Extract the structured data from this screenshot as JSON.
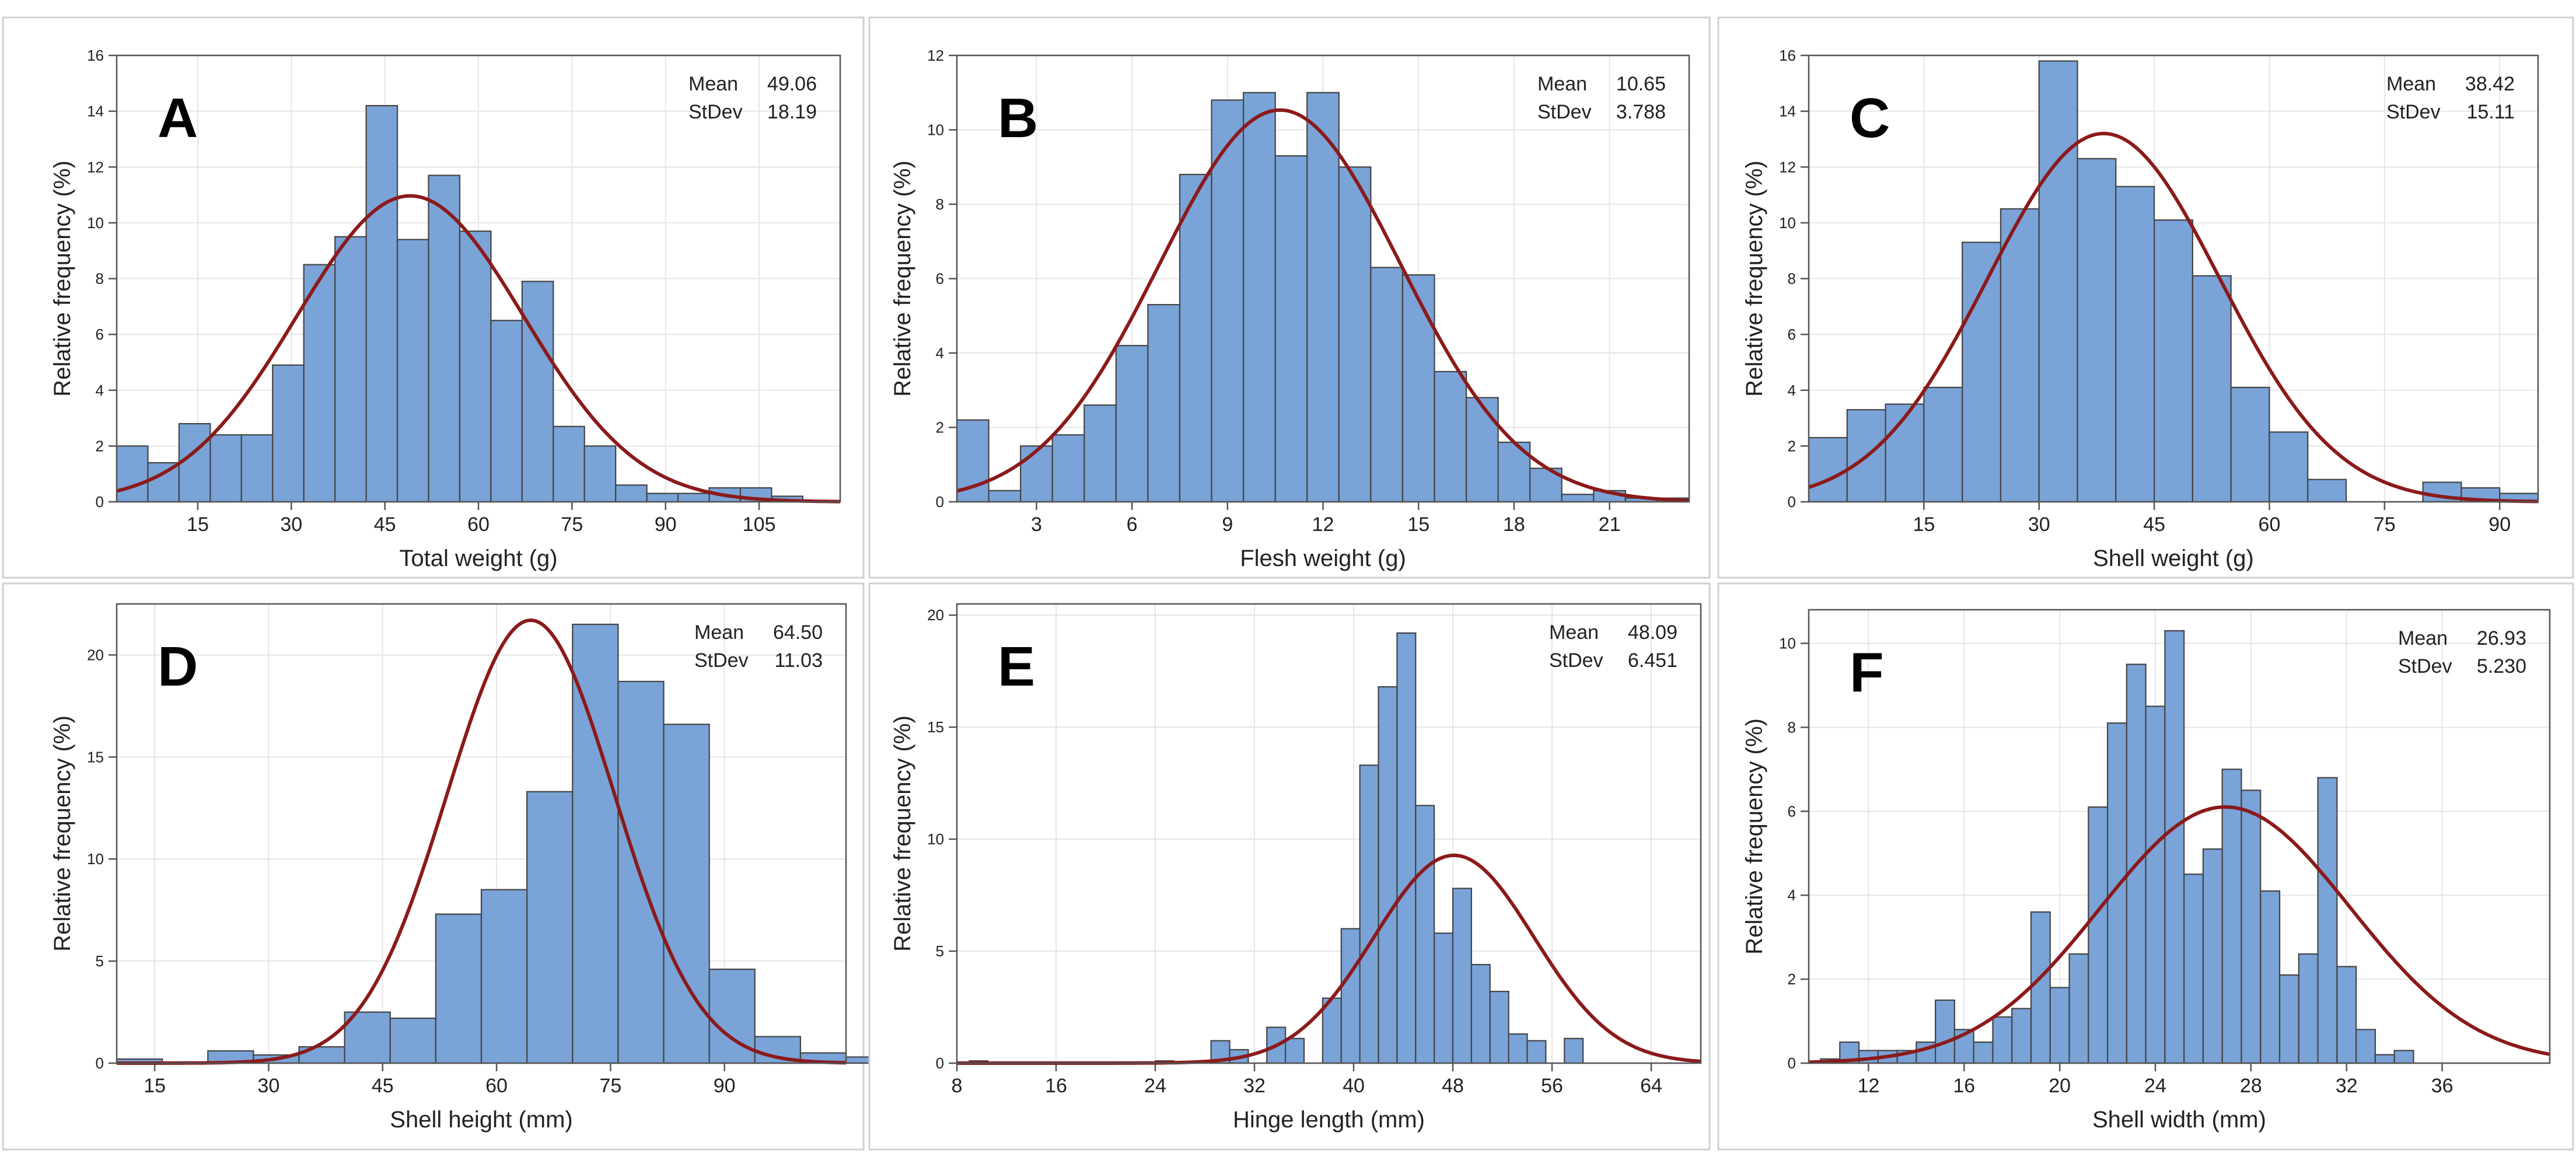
{
  "colors": {
    "bar_fill": "#7AA3D8",
    "bar_edge": "#444444",
    "curve": "#8B1A1A",
    "grid": "#E6E6E6",
    "axis": "#555555",
    "panel_border": "#D0D0D0",
    "text": "#222222"
  },
  "stats_labels": {
    "mean": "Mean",
    "stdev": "StDev"
  },
  "chart_data": [
    {
      "panel": "A",
      "type": "bar",
      "xlabel": "Total weight (g)",
      "ylabel": "Relative frequency (%)",
      "mean": "49.06",
      "stdev": "18.19",
      "xlim": [
        2,
        118
      ],
      "ylim": [
        0,
        16
      ],
      "xticks": [
        "15",
        "30",
        "45",
        "60",
        "75",
        "90",
        "105"
      ],
      "yticks": [
        "0",
        "2",
        "4",
        "6",
        "8",
        "10",
        "12",
        "14",
        "16"
      ],
      "bin_start": 2,
      "bin_width": 5,
      "values": [
        2.0,
        1.4,
        2.8,
        2.4,
        2.4,
        4.9,
        8.5,
        9.5,
        14.2,
        9.4,
        11.7,
        9.7,
        6.5,
        7.9,
        2.7,
        2.0,
        0.6,
        0.3,
        0.3,
        0.5,
        0.5,
        0.2
      ]
    },
    {
      "panel": "B",
      "type": "bar",
      "xlabel": "Flesh weight (g)",
      "ylabel": "Relative frequency (%)",
      "mean": "10.65",
      "stdev": "3.788",
      "xlim": [
        0.5,
        23.5
      ],
      "ylim": [
        0,
        12
      ],
      "xticks": [
        "3",
        "6",
        "9",
        "12",
        "15",
        "18",
        "21"
      ],
      "yticks": [
        "0",
        "2",
        "4",
        "6",
        "8",
        "10",
        "12"
      ],
      "bin_start": 0.5,
      "bin_width": 1,
      "values": [
        2.2,
        0.3,
        1.5,
        1.8,
        2.6,
        4.2,
        5.3,
        8.8,
        10.8,
        11.0,
        9.3,
        11.0,
        9.0,
        6.3,
        6.1,
        3.5,
        2.8,
        1.6,
        0.9,
        0.2,
        0.3,
        0.1,
        0.1
      ]
    },
    {
      "panel": "C",
      "type": "bar",
      "xlabel": "Shell weight (g)",
      "ylabel": "Relative frequency (%)",
      "mean": "38.42",
      "stdev": "15.11",
      "xlim": [
        0,
        95
      ],
      "ylim": [
        0,
        16
      ],
      "xticks": [
        "15",
        "30",
        "45",
        "60",
        "75",
        "90"
      ],
      "yticks": [
        "0",
        "2",
        "4",
        "6",
        "8",
        "10",
        "12",
        "14",
        "16"
      ],
      "bin_start": 0,
      "bin_width": 5,
      "values": [
        2.3,
        3.3,
        3.5,
        4.1,
        9.3,
        10.5,
        15.8,
        12.3,
        11.3,
        10.1,
        8.1,
        4.1,
        2.5,
        0.8,
        0.0,
        0.0,
        0.7,
        0.5,
        0.3
      ]
    },
    {
      "panel": "D",
      "type": "bar",
      "xlabel": "Shell height (mm)",
      "ylabel": "Relative frequency (%)",
      "mean": "64.50",
      "stdev": "11.03",
      "xlim": [
        10,
        106
      ],
      "ylim": [
        0,
        22.5
      ],
      "xticks": [
        "15",
        "30",
        "45",
        "60",
        "75",
        "90"
      ],
      "yticks": [
        "0",
        "5",
        "10",
        "15",
        "20"
      ],
      "bin_start": 10,
      "bin_width": 6,
      "values": [
        0.2,
        0.0,
        0.6,
        0.4,
        0.8,
        2.5,
        2.2,
        7.3,
        8.5,
        13.3,
        21.5,
        18.7,
        16.6,
        4.6,
        1.3,
        0.5,
        0.3
      ]
    },
    {
      "panel": "E",
      "type": "bar",
      "xlabel": "Hinge length (mm)",
      "ylabel": "Relative frequency (%)",
      "mean": "48.09",
      "stdev": "6.451",
      "xlim": [
        8,
        68
      ],
      "ylim": [
        0,
        20.5
      ],
      "xticks": [
        "8",
        "16",
        "24",
        "32",
        "40",
        "48",
        "56",
        "64"
      ],
      "yticks": [
        "0",
        "5",
        "10",
        "15",
        "20"
      ],
      "bin_start": 9,
      "bin_width": 1.5,
      "values": [
        0.1,
        0,
        0,
        0,
        0,
        0,
        0,
        0,
        0,
        0,
        0.1,
        0,
        0,
        1.0,
        0.6,
        0,
        1.6,
        1.1,
        0,
        2.9,
        6.0,
        13.3,
        16.8,
        19.2,
        11.5,
        5.8,
        7.8,
        4.4,
        3.2,
        1.3,
        1.0,
        0,
        1.1
      ]
    },
    {
      "panel": "F",
      "type": "bar",
      "xlabel": "Shell width (mm)",
      "ylabel": "Relative frequency (%)",
      "mean": "26.93",
      "stdev": "5.230",
      "xlim": [
        9.5,
        40.5
      ],
      "ylim": [
        0,
        10.8
      ],
      "xticks": [
        "12",
        "16",
        "20",
        "24",
        "28",
        "32",
        "36"
      ],
      "yticks": [
        "0",
        "2",
        "4",
        "6",
        "8",
        "10"
      ],
      "bin_start": 10,
      "bin_width": 0.8,
      "values": [
        0.1,
        0.5,
        0.3,
        0.3,
        0.3,
        0.5,
        1.5,
        0.8,
        0.5,
        1.1,
        1.3,
        3.6,
        1.8,
        2.6,
        6.1,
        8.1,
        9.5,
        8.5,
        10.3,
        4.5,
        5.1,
        7.0,
        6.5,
        4.1,
        2.1,
        2.6,
        6.8,
        2.3,
        0.8,
        0.2,
        0.3
      ]
    }
  ]
}
